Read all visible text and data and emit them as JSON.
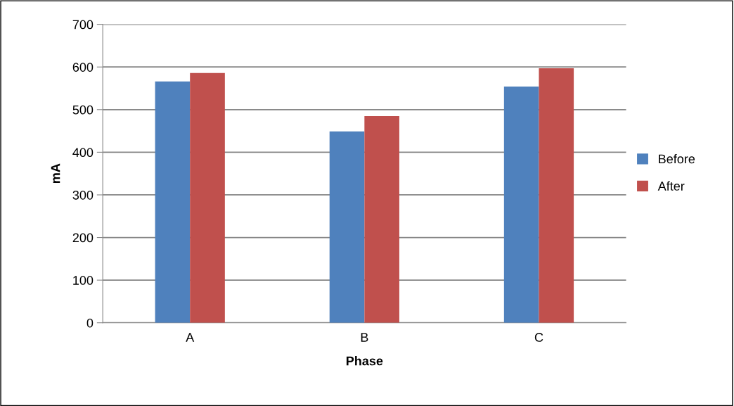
{
  "chart_data": {
    "type": "bar",
    "xlabel": "Phase",
    "ylabel": "mA",
    "categories": [
      "A",
      "B",
      "C"
    ],
    "series": [
      {
        "name": "Before",
        "color": "#4f81bd",
        "values": [
          566,
          449,
          554
        ]
      },
      {
        "name": "After",
        "color": "#c0504d",
        "values": [
          586,
          485,
          597
        ]
      }
    ],
    "ylim": [
      0,
      700
    ],
    "yticks": [
      0,
      100,
      200,
      300,
      400,
      500,
      600,
      700
    ],
    "grid": "y",
    "legend": "right"
  }
}
